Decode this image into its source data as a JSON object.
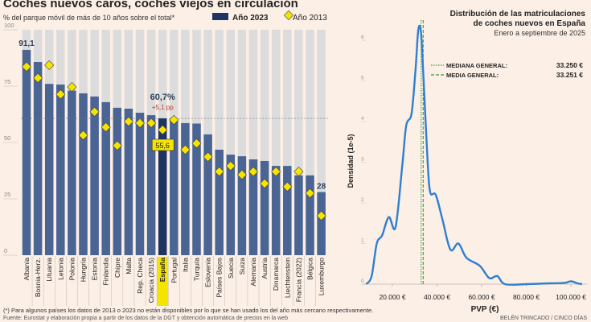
{
  "colors": {
    "background": "#fcefe6",
    "bar_2023": "#4a6494",
    "bar_spain": "#1f3461",
    "bar_bg": "#dcdcdc",
    "diamond": "#f5e400",
    "highlight": "#f5e400",
    "increase": "#c0392b",
    "kde_line": "#2f7fd0",
    "median_line": "#3a9a3a"
  },
  "footnote": "(*) Para algunos países los datos de 2013 o 2023 no están disponibles por lo que se han usado los del año más cercano respectivamente.",
  "source": "Fuente: Eurostat y elaboración propia a partir de los datos de la DGT y obtención automática de precios en la web",
  "credit": "BELÉN TRINCADO / CINCO DÍAS",
  "chart_data": [
    {
      "type": "bar",
      "title": "Coches nuevos caros, coches viejos en circulación",
      "subtitle": "% del parque móvil de más de 10 años sobre el total*",
      "legend": [
        {
          "label": "Año 2023",
          "marker": "bar"
        },
        {
          "label": "Año 2013",
          "marker": "diamond"
        }
      ],
      "legend_placement": "top",
      "ylim": [
        0,
        100
      ],
      "yticks": [
        "0",
        "25",
        "50",
        "75",
        "100"
      ],
      "reference_line": 60.7,
      "categories": [
        "Albania",
        "Bosnia-Herz.",
        "Lituania",
        "Letonia",
        "Polonia",
        "Hungría",
        "Estonia",
        "Finlandia",
        "Chipre",
        "Malta",
        "Rep. Checa",
        "Croacia (2015)",
        "España",
        "Portugal",
        "Italia",
        "Turquía",
        "Eslovenia",
        "Países Bajos",
        "Suecia",
        "Suiza",
        "Alemania",
        "Austria",
        "Dinamarca",
        "Liechtenstein",
        "Francia (2022)",
        "Bélgica",
        "Luxemburgo"
      ],
      "highlight_category": "España",
      "series": [
        {
          "name": "Año 2023",
          "values": [
            91.1,
            85.7,
            76,
            75.7,
            73,
            71.8,
            70.4,
            67.9,
            65.4,
            65,
            63.2,
            62.1,
            60.7,
            60.3,
            58.6,
            58.4,
            53.6,
            46.8,
            44.6,
            43.9,
            42.5,
            41.8,
            39.6,
            39.6,
            35.4,
            35.4,
            28
          ]
        },
        {
          "name": "Año 2013",
          "values": [
            83.6,
            78.6,
            84.3,
            71.4,
            74.6,
            53.2,
            63.6,
            56.8,
            48.6,
            59.3,
            58.6,
            58.6,
            55.6,
            60,
            46.8,
            49.6,
            43.6,
            37.1,
            39.6,
            35.7,
            37.1,
            31.8,
            37.1,
            30.4,
            37.1,
            27.5,
            17.5
          ]
        }
      ],
      "annotations": {
        "first_value": "91,1",
        "last_value": "28",
        "spain_2023": "60,7%",
        "spain_change": "+5,1 pp",
        "spain_2013": "55,6"
      }
    },
    {
      "type": "line",
      "title": "Distribución de las matriculaciones de coches nuevos en España",
      "title_lines": [
        "Distribución de las matriculaciones",
        "de coches nuevos en España"
      ],
      "subtitle": "Enero a septiembre de 2025",
      "xlabel": "PVP (€)",
      "ylabel": "Densidad (1e-5)",
      "xlim": [
        5000,
        106000
      ],
      "ylim": [
        0,
        7
      ],
      "xticks": [
        {
          "v": 20000,
          "label": "20.000 €"
        },
        {
          "v": 40000,
          "label": "40.000 €"
        },
        {
          "v": 60000,
          "label": "60.000 €"
        },
        {
          "v": 80000,
          "label": "80.000 €"
        },
        {
          "v": 100000,
          "label": "100.000 €"
        }
      ],
      "yticks": [
        "0",
        "1",
        "2",
        "3",
        "4",
        "5",
        "6"
      ],
      "x": [
        8300,
        10700,
        13000,
        15400,
        18400,
        21400,
        24400,
        26200,
        28600,
        30400,
        31600,
        32800,
        34000,
        35800,
        37000,
        39400,
        42400,
        46000,
        49600,
        53200,
        59200,
        63400,
        67000,
        70500,
        80000,
        90000,
        97000,
        100000,
        103000,
        105000
      ],
      "y": [
        0,
        0.2,
        1.0,
        1.2,
        1.65,
        1.4,
        2.9,
        3.9,
        4.2,
        5.3,
        6.25,
        6.2,
        5.0,
        3.0,
        2.25,
        2.2,
        1.6,
        0.85,
        1.0,
        0.65,
        0.45,
        0.15,
        0.2,
        0,
        0,
        0.02,
        0.03,
        0.07,
        0.02,
        0
      ],
      "vertical_lines": [
        {
          "label": "MEDIANA GENERAL:",
          "value_label": "33.250 €",
          "x": 33250,
          "style": "dotted"
        },
        {
          "label": "MEDIA GENERAL:",
          "value_label": "33.251 €",
          "x": 33251,
          "style": "dashed"
        }
      ],
      "legend_placement": "top-right"
    }
  ]
}
